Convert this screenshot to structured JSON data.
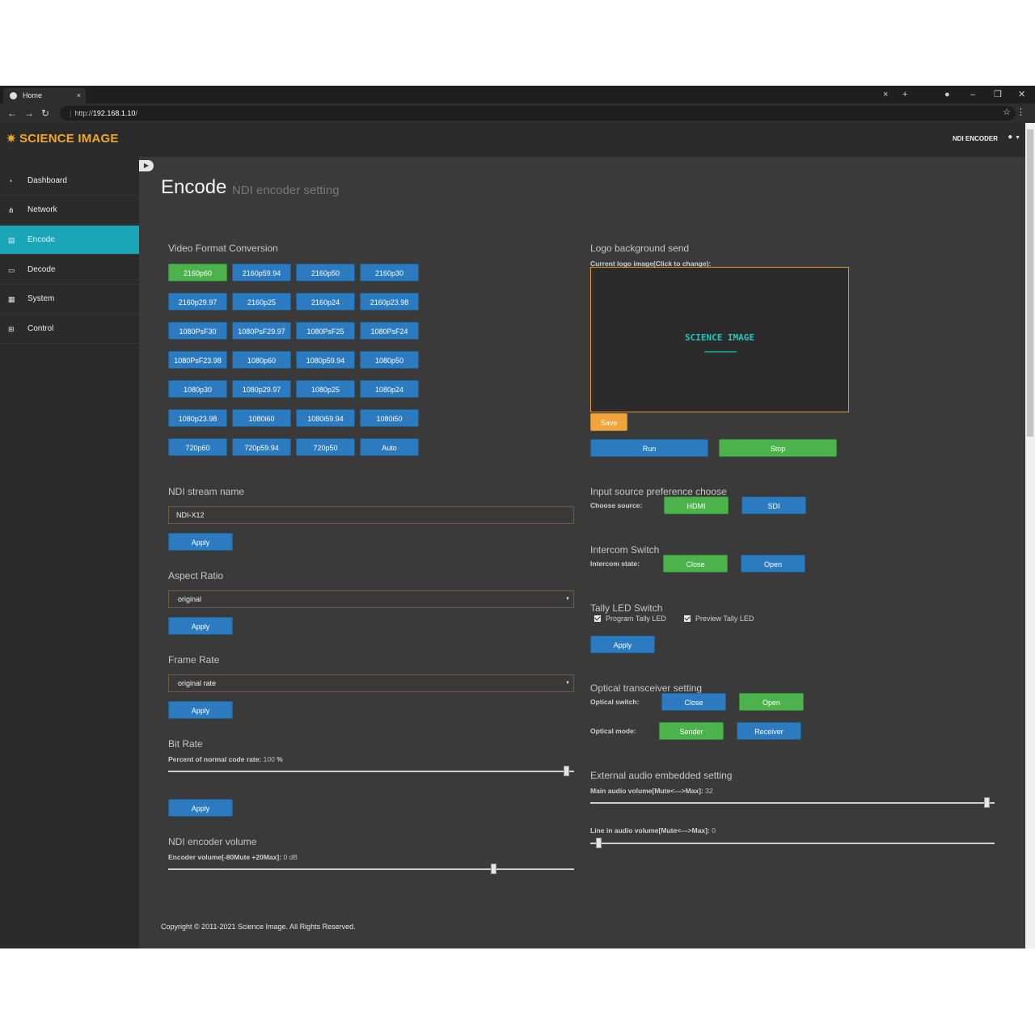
{
  "browser": {
    "tab_title": "Home",
    "tab_close": "×",
    "url_prefix": "http://",
    "url_host": "192.168.1.10",
    "url_suffix": "/"
  },
  "header": {
    "brand": "SCIENCE IMAGE",
    "device": "NDI ENCODER"
  },
  "sidebar": {
    "items": [
      {
        "label": "Dashboard",
        "icon": "dashboard-icon"
      },
      {
        "label": "Network",
        "icon": "network-icon"
      },
      {
        "label": "Encode",
        "icon": "encode-icon",
        "active": true
      },
      {
        "label": "Decode",
        "icon": "monitor-icon"
      },
      {
        "label": "System",
        "icon": "system-icon"
      },
      {
        "label": "Control",
        "icon": "control-icon"
      }
    ]
  },
  "page": {
    "title": "Encode",
    "subtitle": "NDI encoder setting"
  },
  "video_format": {
    "heading": "Video Format Conversion",
    "selected": "2160p60",
    "formats": [
      [
        "2160p60",
        "2160p59.94",
        "2160p50",
        "2160p30"
      ],
      [
        "2160p29.97",
        "2160p25",
        "2160p24",
        "2160p23.98"
      ],
      [
        "1080PsF30",
        "1080PsF29.97",
        "1080PsF25",
        "1080PsF24"
      ],
      [
        "1080PsF23.98",
        "1080p60",
        "1080p59.94",
        "1080p50"
      ],
      [
        "1080p30",
        "1080p29.97",
        "1080p25",
        "1080p24"
      ],
      [
        "1080p23.98",
        "1080i60",
        "1080i59.94",
        "1080i50"
      ],
      [
        "720p60",
        "720p59.94",
        "720p50",
        "Auto"
      ]
    ]
  },
  "ndi_stream": {
    "heading": "NDI stream name",
    "value": "NDI-X12",
    "apply": "Apply"
  },
  "aspect_ratio": {
    "heading": "Aspect Ratio",
    "value": "original",
    "apply": "Apply"
  },
  "frame_rate": {
    "heading": "Frame Rate",
    "value": "original rate",
    "apply": "Apply"
  },
  "bit_rate": {
    "heading": "Bit Rate",
    "label": "Percent of normal code rate:",
    "value": "100",
    "unit": "%",
    "level": 0.98,
    "apply": "Apply"
  },
  "encoder_volume": {
    "heading": "NDI encoder volume",
    "label": "Encoder volume[-80Mute +20Max]:",
    "value": "0",
    "unit": "dB",
    "level": 0.8
  },
  "logo": {
    "heading": "Logo background send",
    "label": "Current logo image(Click to change):",
    "logo_text": "SCIENCE IMAGE",
    "save": "Save",
    "run": "Run",
    "stop": "Stop"
  },
  "input_source": {
    "heading": "Input source preference choose",
    "label": "Choose source:",
    "hdmi": "HDMI",
    "sdi": "SDI"
  },
  "intercom": {
    "heading": "Intercom Switch",
    "label": "Intercom state:",
    "close": "Close",
    "open": "Open"
  },
  "tally": {
    "heading": "Tally LED Switch",
    "program": "Program Tally LED",
    "preview": "Preview Tally LED",
    "apply": "Apply"
  },
  "optical": {
    "heading": "Optical transceiver setting",
    "switch_label": "Optical switch:",
    "close": "Close",
    "open": "Open",
    "mode_label": "Optical mode:",
    "sender": "Sender",
    "receiver": "Receiver"
  },
  "external_audio": {
    "heading": "External audio embedded setting",
    "main_label": "Main audio volume[Mute<--->Max]:",
    "main_value": "32",
    "main_level": 0.98,
    "line_label": "Line in audio volume[Mute<--->Max]:",
    "line_value": "0",
    "line_level": 0.02
  },
  "footer": {
    "copyright": "Copyright © 2011-2021 Science Image. All Rights Reserved."
  }
}
